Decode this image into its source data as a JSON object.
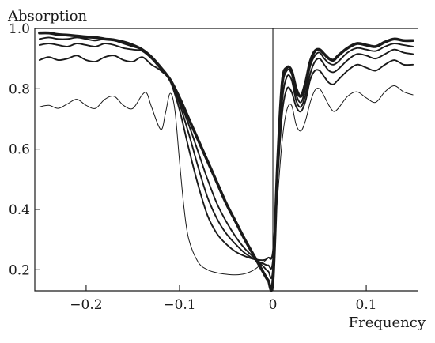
{
  "chart_data": {
    "type": "line",
    "title": "",
    "ylabel": "Absorption",
    "xlabel": "Frequency",
    "xlim": [
      -0.255,
      0.155
    ],
    "ylim": [
      0.13,
      1.0
    ],
    "x_ticks": [
      -0.2,
      -0.1,
      0,
      0.1
    ],
    "x_tick_labels": [
      "−0.2",
      "−0.1",
      "0",
      "0.1"
    ],
    "y_ticks": [
      0.2,
      0.4,
      0.6,
      0.8,
      1.0
    ],
    "y_tick_labels": [
      "0.2",
      "0.4",
      "0.6",
      "0.8",
      "1.0"
    ],
    "vertical_line_x": 0,
    "grid": false,
    "legend": "none",
    "series": [
      {
        "line_weight": "thin",
        "points": [
          [
            -0.25,
            0.74
          ],
          [
            -0.24,
            0.745
          ],
          [
            -0.23,
            0.735
          ],
          [
            -0.22,
            0.75
          ],
          [
            -0.21,
            0.765
          ],
          [
            -0.2,
            0.745
          ],
          [
            -0.19,
            0.735
          ],
          [
            -0.18,
            0.765
          ],
          [
            -0.17,
            0.775
          ],
          [
            -0.16,
            0.745
          ],
          [
            -0.15,
            0.735
          ],
          [
            -0.14,
            0.78
          ],
          [
            -0.135,
            0.785
          ],
          [
            -0.13,
            0.74
          ],
          [
            -0.12,
            0.665
          ],
          [
            -0.115,
            0.72
          ],
          [
            -0.11,
            0.785
          ],
          [
            -0.105,
            0.73
          ],
          [
            -0.1,
            0.56
          ],
          [
            -0.095,
            0.4
          ],
          [
            -0.09,
            0.3
          ],
          [
            -0.08,
            0.225
          ],
          [
            -0.07,
            0.2
          ],
          [
            -0.06,
            0.19
          ],
          [
            -0.05,
            0.185
          ],
          [
            -0.04,
            0.183
          ],
          [
            -0.03,
            0.187
          ],
          [
            -0.02,
            0.2
          ],
          [
            -0.01,
            0.225
          ],
          [
            -0.005,
            0.24
          ],
          [
            0,
            0.26
          ],
          [
            0.005,
            0.44
          ],
          [
            0.01,
            0.63
          ],
          [
            0.015,
            0.73
          ],
          [
            0.02,
            0.745
          ],
          [
            0.025,
            0.68
          ],
          [
            0.03,
            0.66
          ],
          [
            0.035,
            0.695
          ],
          [
            0.04,
            0.755
          ],
          [
            0.045,
            0.795
          ],
          [
            0.05,
            0.8
          ],
          [
            0.055,
            0.775
          ],
          [
            0.06,
            0.745
          ],
          [
            0.065,
            0.725
          ],
          [
            0.07,
            0.735
          ],
          [
            0.08,
            0.775
          ],
          [
            0.09,
            0.79
          ],
          [
            0.1,
            0.77
          ],
          [
            0.11,
            0.755
          ],
          [
            0.12,
            0.79
          ],
          [
            0.13,
            0.81
          ],
          [
            0.14,
            0.79
          ],
          [
            0.15,
            0.78
          ]
        ]
      },
      {
        "line_weight": "medium",
        "points": [
          [
            -0.25,
            0.895
          ],
          [
            -0.24,
            0.905
          ],
          [
            -0.23,
            0.895
          ],
          [
            -0.22,
            0.9
          ],
          [
            -0.21,
            0.91
          ],
          [
            -0.2,
            0.895
          ],
          [
            -0.19,
            0.89
          ],
          [
            -0.18,
            0.905
          ],
          [
            -0.17,
            0.91
          ],
          [
            -0.16,
            0.895
          ],
          [
            -0.15,
            0.89
          ],
          [
            -0.14,
            0.905
          ],
          [
            -0.13,
            0.88
          ],
          [
            -0.12,
            0.86
          ],
          [
            -0.11,
            0.825
          ],
          [
            -0.1,
            0.73
          ],
          [
            -0.09,
            0.6
          ],
          [
            -0.08,
            0.48
          ],
          [
            -0.07,
            0.38
          ],
          [
            -0.06,
            0.32
          ],
          [
            -0.05,
            0.285
          ],
          [
            -0.04,
            0.26
          ],
          [
            -0.03,
            0.245
          ],
          [
            -0.02,
            0.235
          ],
          [
            -0.01,
            0.232
          ],
          [
            -0.005,
            0.24
          ],
          [
            0,
            0.26
          ],
          [
            0.005,
            0.5
          ],
          [
            0.01,
            0.72
          ],
          [
            0.015,
            0.8
          ],
          [
            0.02,
            0.79
          ],
          [
            0.025,
            0.74
          ],
          [
            0.03,
            0.725
          ],
          [
            0.035,
            0.76
          ],
          [
            0.04,
            0.83
          ],
          [
            0.045,
            0.86
          ],
          [
            0.05,
            0.86
          ],
          [
            0.055,
            0.84
          ],
          [
            0.06,
            0.82
          ],
          [
            0.065,
            0.815
          ],
          [
            0.07,
            0.83
          ],
          [
            0.08,
            0.86
          ],
          [
            0.09,
            0.88
          ],
          [
            0.1,
            0.87
          ],
          [
            0.11,
            0.86
          ],
          [
            0.12,
            0.88
          ],
          [
            0.13,
            0.895
          ],
          [
            0.14,
            0.88
          ],
          [
            0.15,
            0.88
          ]
        ]
      },
      {
        "line_weight": "medium",
        "points": [
          [
            -0.25,
            0.945
          ],
          [
            -0.24,
            0.95
          ],
          [
            -0.23,
            0.945
          ],
          [
            -0.22,
            0.94
          ],
          [
            -0.21,
            0.95
          ],
          [
            -0.2,
            0.945
          ],
          [
            -0.19,
            0.94
          ],
          [
            -0.18,
            0.95
          ],
          [
            -0.17,
            0.945
          ],
          [
            -0.16,
            0.935
          ],
          [
            -0.15,
            0.93
          ],
          [
            -0.14,
            0.925
          ],
          [
            -0.13,
            0.9
          ],
          [
            -0.12,
            0.865
          ],
          [
            -0.11,
            0.83
          ],
          [
            -0.1,
            0.75
          ],
          [
            -0.09,
            0.65
          ],
          [
            -0.08,
            0.54
          ],
          [
            -0.07,
            0.44
          ],
          [
            -0.06,
            0.37
          ],
          [
            -0.05,
            0.32
          ],
          [
            -0.04,
            0.285
          ],
          [
            -0.03,
            0.255
          ],
          [
            -0.02,
            0.235
          ],
          [
            -0.01,
            0.22
          ],
          [
            -0.005,
            0.215
          ],
          [
            0,
            0.23
          ],
          [
            0.005,
            0.52
          ],
          [
            0.01,
            0.76
          ],
          [
            0.015,
            0.84
          ],
          [
            0.02,
            0.83
          ],
          [
            0.025,
            0.76
          ],
          [
            0.03,
            0.74
          ],
          [
            0.035,
            0.78
          ],
          [
            0.04,
            0.85
          ],
          [
            0.045,
            0.89
          ],
          [
            0.05,
            0.9
          ],
          [
            0.055,
            0.88
          ],
          [
            0.06,
            0.86
          ],
          [
            0.065,
            0.855
          ],
          [
            0.07,
            0.865
          ],
          [
            0.08,
            0.895
          ],
          [
            0.09,
            0.915
          ],
          [
            0.1,
            0.91
          ],
          [
            0.11,
            0.9
          ],
          [
            0.12,
            0.915
          ],
          [
            0.13,
            0.93
          ],
          [
            0.14,
            0.92
          ],
          [
            0.15,
            0.915
          ]
        ]
      },
      {
        "line_weight": "medium",
        "points": [
          [
            -0.25,
            0.965
          ],
          [
            -0.24,
            0.97
          ],
          [
            -0.23,
            0.965
          ],
          [
            -0.22,
            0.965
          ],
          [
            -0.21,
            0.97
          ],
          [
            -0.2,
            0.965
          ],
          [
            -0.19,
            0.96
          ],
          [
            -0.18,
            0.965
          ],
          [
            -0.17,
            0.96
          ],
          [
            -0.16,
            0.95
          ],
          [
            -0.15,
            0.94
          ],
          [
            -0.14,
            0.93
          ],
          [
            -0.13,
            0.905
          ],
          [
            -0.12,
            0.87
          ],
          [
            -0.11,
            0.83
          ],
          [
            -0.1,
            0.76
          ],
          [
            -0.09,
            0.68
          ],
          [
            -0.08,
            0.59
          ],
          [
            -0.07,
            0.5
          ],
          [
            -0.06,
            0.42
          ],
          [
            -0.05,
            0.36
          ],
          [
            -0.04,
            0.31
          ],
          [
            -0.03,
            0.27
          ],
          [
            -0.02,
            0.24
          ],
          [
            -0.01,
            0.21
          ],
          [
            -0.005,
            0.195
          ],
          [
            0,
            0.2
          ],
          [
            0.005,
            0.55
          ],
          [
            0.01,
            0.8
          ],
          [
            0.015,
            0.86
          ],
          [
            0.02,
            0.85
          ],
          [
            0.025,
            0.78
          ],
          [
            0.03,
            0.755
          ],
          [
            0.035,
            0.8
          ],
          [
            0.04,
            0.875
          ],
          [
            0.045,
            0.91
          ],
          [
            0.05,
            0.92
          ],
          [
            0.055,
            0.9
          ],
          [
            0.06,
            0.885
          ],
          [
            0.065,
            0.88
          ],
          [
            0.07,
            0.89
          ],
          [
            0.08,
            0.92
          ],
          [
            0.09,
            0.935
          ],
          [
            0.1,
            0.93
          ],
          [
            0.11,
            0.925
          ],
          [
            0.12,
            0.94
          ],
          [
            0.13,
            0.95
          ],
          [
            0.14,
            0.945
          ],
          [
            0.15,
            0.94
          ]
        ]
      },
      {
        "line_weight": "thick",
        "points": [
          [
            -0.25,
            0.985
          ],
          [
            -0.24,
            0.985
          ],
          [
            -0.23,
            0.98
          ],
          [
            -0.22,
            0.978
          ],
          [
            -0.21,
            0.975
          ],
          [
            -0.2,
            0.972
          ],
          [
            -0.19,
            0.97
          ],
          [
            -0.18,
            0.965
          ],
          [
            -0.17,
            0.962
          ],
          [
            -0.16,
            0.955
          ],
          [
            -0.15,
            0.945
          ],
          [
            -0.14,
            0.93
          ],
          [
            -0.13,
            0.905
          ],
          [
            -0.12,
            0.87
          ],
          [
            -0.11,
            0.83
          ],
          [
            -0.1,
            0.77
          ],
          [
            -0.09,
            0.7
          ],
          [
            -0.08,
            0.63
          ],
          [
            -0.07,
            0.56
          ],
          [
            -0.06,
            0.49
          ],
          [
            -0.05,
            0.42
          ],
          [
            -0.04,
            0.36
          ],
          [
            -0.03,
            0.3
          ],
          [
            -0.02,
            0.245
          ],
          [
            -0.01,
            0.19
          ],
          [
            -0.005,
            0.165
          ],
          [
            0,
            0.16
          ],
          [
            0.005,
            0.55
          ],
          [
            0.01,
            0.82
          ],
          [
            0.015,
            0.87
          ],
          [
            0.02,
            0.86
          ],
          [
            0.025,
            0.8
          ],
          [
            0.03,
            0.775
          ],
          [
            0.035,
            0.82
          ],
          [
            0.04,
            0.89
          ],
          [
            0.045,
            0.925
          ],
          [
            0.05,
            0.93
          ],
          [
            0.055,
            0.915
          ],
          [
            0.06,
            0.9
          ],
          [
            0.065,
            0.895
          ],
          [
            0.07,
            0.91
          ],
          [
            0.08,
            0.935
          ],
          [
            0.09,
            0.95
          ],
          [
            0.1,
            0.945
          ],
          [
            0.11,
            0.94
          ],
          [
            0.12,
            0.955
          ],
          [
            0.13,
            0.965
          ],
          [
            0.14,
            0.96
          ],
          [
            0.15,
            0.96
          ]
        ]
      }
    ]
  }
}
